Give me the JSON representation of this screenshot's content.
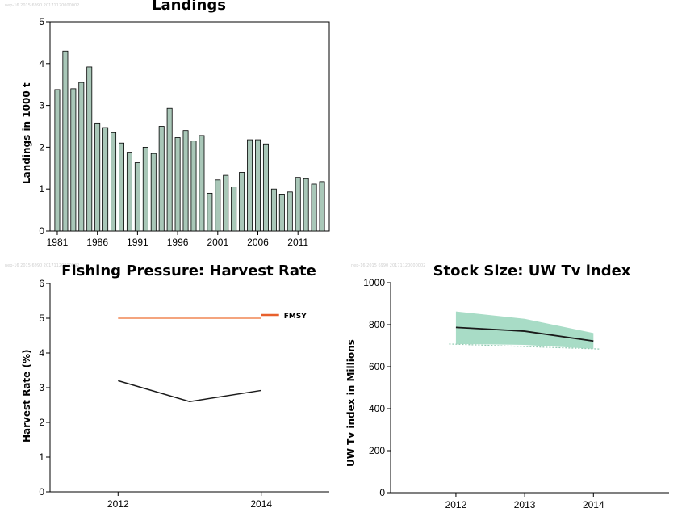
{
  "watermark": "nep-16 2015 6990 20171120000002",
  "chart_data": [
    {
      "id": "landings",
      "type": "bar",
      "title": "Landings",
      "xlabel": "",
      "ylabel": "Landings in 1000 t",
      "ylim": [
        0,
        5
      ],
      "yticks": [
        0,
        1,
        2,
        3,
        4,
        5
      ],
      "xtick_labels": [
        "1981",
        "1986",
        "1991",
        "1996",
        "2001",
        "2006",
        "2011"
      ],
      "bar_color": "#a9c7b8",
      "categories": [
        1981,
        1982,
        1983,
        1984,
        1985,
        1986,
        1987,
        1988,
        1989,
        1990,
        1991,
        1992,
        1993,
        1994,
        1995,
        1996,
        1997,
        1998,
        1999,
        2000,
        2001,
        2002,
        2003,
        2004,
        2005,
        2006,
        2007,
        2008,
        2009,
        2010,
        2011,
        2012,
        2013,
        2014
      ],
      "values": [
        3.38,
        4.3,
        3.4,
        3.55,
        3.92,
        2.58,
        2.47,
        2.35,
        2.1,
        1.88,
        1.63,
        2.0,
        1.85,
        2.5,
        2.93,
        2.23,
        2.4,
        2.15,
        2.28,
        0.9,
        1.22,
        1.33,
        1.05,
        1.4,
        2.18,
        2.18,
        2.08,
        1.0,
        0.88,
        0.93,
        1.28,
        1.25,
        1.12,
        1.18
      ],
      "grid": false
    },
    {
      "id": "harvest",
      "type": "line",
      "title": "Fishing Pressure: Harvest Rate",
      "xlabel": "",
      "ylabel": "Harvest Rate (%)",
      "ylim": [
        0,
        6
      ],
      "yticks": [
        0,
        1,
        2,
        3,
        4,
        5,
        6
      ],
      "xlim": [
        2011.05,
        2014.95
      ],
      "xtick_labels": [
        "2012",
        "2014"
      ],
      "series": [
        {
          "name": "",
          "x": [
            2012,
            2013,
            2014
          ],
          "y": [
            3.2,
            2.6,
            2.92
          ],
          "color": "#1a1a1a"
        }
      ],
      "reference": {
        "name": "FMSY",
        "value": 5.0,
        "x": [
          2012,
          2014
        ],
        "color": "#f4a47e",
        "legend_color": "#e8602c"
      },
      "legend_position": "top-right",
      "grid": false
    },
    {
      "id": "stock",
      "type": "area",
      "title": "Stock Size: UW Tv index",
      "xlabel": "",
      "ylabel": "UW Tv index in Millions",
      "ylim": [
        0,
        1000
      ],
      "yticks": [
        0,
        200,
        400,
        600,
        800,
        1000
      ],
      "xlim": [
        2011.05,
        2015.1
      ],
      "xtick_labels": [
        "2012",
        "2013",
        "2014"
      ],
      "series": [
        {
          "name": "",
          "x": [
            2012,
            2013,
            2014
          ],
          "y": [
            787,
            769,
            722
          ],
          "color": "#1a1a1a"
        }
      ],
      "band": {
        "x": [
          2012,
          2013,
          2014
        ],
        "upper": [
          863,
          828,
          760
        ],
        "lower": [
          708,
          704,
          685
        ],
        "color": "#a8dcc6"
      },
      "lower_dotted_line": {
        "x": [
          2011.9,
          2014.1
        ],
        "y": [
          708,
          684
        ],
        "color": "#8fc9b0"
      },
      "grid": false
    }
  ]
}
